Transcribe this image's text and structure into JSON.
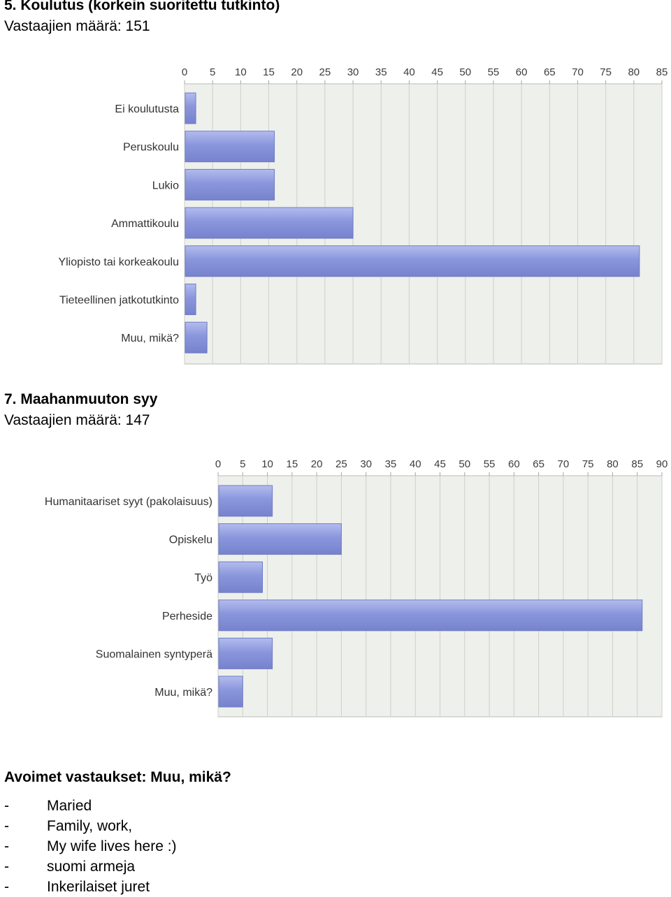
{
  "sections": [
    {
      "title": "5. Koulutus (korkein suoritettu tutkinto)",
      "respondents": "Vastaajien määrä: 151",
      "chart_data": {
        "type": "bar",
        "orientation": "horizontal",
        "categories": [
          "Ei koulutusta",
          "Peruskoulu",
          "Lukio",
          "Ammattikoulu",
          "Yliopisto tai korkeakoulu",
          "Tieteellinen jatkotutkinto",
          "Muu, mikä?"
        ],
        "values": [
          2,
          16,
          16,
          30,
          81,
          2,
          4
        ],
        "xlim": [
          0,
          85
        ],
        "ticks": [
          0,
          5,
          10,
          15,
          20,
          25,
          30,
          35,
          40,
          45,
          50,
          55,
          60,
          65,
          70,
          75,
          80,
          85
        ],
        "tick_position": "top",
        "grid": true,
        "bar_color": "#8a96dc",
        "bar_edge_color": "#6f7cc4",
        "plot_background": "#eef0ec"
      }
    },
    {
      "title": "7. Maahanmuuton syy",
      "respondents": "Vastaajien määrä: 147",
      "chart_data": {
        "type": "bar",
        "orientation": "horizontal",
        "categories": [
          "Humanitaariset syyt (pakolaisuus)",
          "Opiskelu",
          "Työ",
          "Perheside",
          "Suomalainen syntyperä",
          "Muu, mikä?"
        ],
        "values": [
          11,
          25,
          9,
          86,
          11,
          5
        ],
        "xlim": [
          0,
          90
        ],
        "ticks": [
          0,
          5,
          10,
          15,
          20,
          25,
          30,
          35,
          40,
          45,
          50,
          55,
          60,
          65,
          70,
          75,
          80,
          85,
          90
        ],
        "tick_position": "top",
        "grid": true,
        "bar_color": "#8a96dc",
        "bar_edge_color": "#6f7cc4",
        "plot_background": "#eef0ec"
      }
    }
  ],
  "open_answers": {
    "title": "Avoimet vastaukset: Muu, mikä?",
    "bullet": "-",
    "items": [
      "Maried",
      "Family, work,",
      "My wife lives here :)",
      "suomi armeja",
      "Inkerilaiset juret"
    ]
  }
}
